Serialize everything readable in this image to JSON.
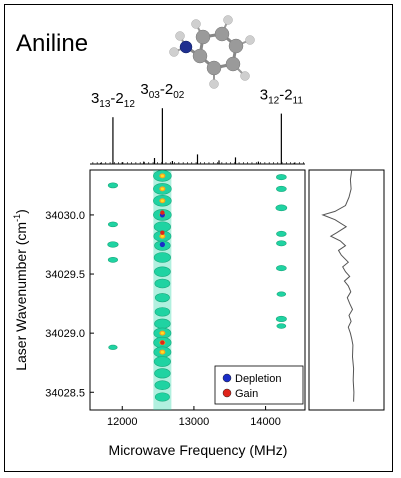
{
  "molecule": {
    "name": "Aniline",
    "atom_colors": {
      "carbon": "#9a9a9a",
      "hydrogen": "#cfcfcf",
      "nitrogen": "#1f2f8f"
    }
  },
  "chart_data": {
    "type": "heatmap",
    "title": "",
    "xlabel": "Microwave Frequency (MHz)",
    "ylabel": "Laser Wavenumber (cm⁻¹)",
    "ylabel_base": "Laser Wavenumber (cm",
    "ylabel_sup": "-1",
    "ylabel_close": ")",
    "xlim": [
      11550,
      14550
    ],
    "ylim": [
      34028.35,
      34030.38
    ],
    "x_ticks": [
      12000,
      13000,
      14000
    ],
    "x_tick_labels": [
      "12000",
      "13000",
      "14000"
    ],
    "y_ticks": [
      34028.5,
      34029.0,
      34029.5,
      34030.0
    ],
    "y_tick_labels": [
      "34028.5",
      "34029.0",
      "34029.5",
      "34030.0"
    ],
    "transitions": [
      {
        "label_main": "3",
        "sub1": "13",
        "label_mid": "-2",
        "sub2": "12",
        "frequency": 11870,
        "relative_intensity": 0.78
      },
      {
        "label_main": "3",
        "sub1": "03",
        "label_mid": "-2",
        "sub2": "02",
        "frequency": 12560,
        "relative_intensity": 0.93
      },
      {
        "label_main": "3",
        "sub1": "12",
        "label_mid": "-2",
        "sub2": "11",
        "frequency": 14220,
        "relative_intensity": 0.84
      }
    ],
    "legend": {
      "placement": "bottom-right",
      "entries": [
        {
          "label": "Depletion",
          "color": "#1a2cc8"
        },
        {
          "label": "Gain",
          "color": "#e0241a"
        }
      ]
    },
    "colors": {
      "signal": "#1fd3a2",
      "signal_edge": "#1aa87c",
      "peak_hot": "#ffe020",
      "peak_warm": "#f4a623",
      "depletion": "#1a2cc8",
      "gain": "#e0241a"
    },
    "series": [
      {
        "column_frequency": 11870,
        "spots": [
          {
            "wavenumber": 34030.25,
            "strength": 0.5
          },
          {
            "wavenumber": 34029.92,
            "strength": 0.45
          },
          {
            "wavenumber": 34029.75,
            "strength": 0.7
          },
          {
            "wavenumber": 34029.62,
            "strength": 0.5
          },
          {
            "wavenumber": 34028.88,
            "strength": 0.3
          }
        ]
      },
      {
        "column_frequency": 12560,
        "spots": [
          {
            "wavenumber": 34030.33,
            "strength": 1.0
          },
          {
            "wavenumber": 34030.22,
            "strength": 1.0
          },
          {
            "wavenumber": 34030.12,
            "strength": 1.0
          },
          {
            "wavenumber": 34030.0,
            "strength": 1.0
          },
          {
            "wavenumber": 34029.9,
            "strength": 0.8
          },
          {
            "wavenumber": 34029.82,
            "strength": 0.9
          },
          {
            "wavenumber": 34029.74,
            "strength": 0.7
          },
          {
            "wavenumber": 34029.64,
            "strength": 0.8
          },
          {
            "wavenumber": 34029.52,
            "strength": 0.75
          },
          {
            "wavenumber": 34029.42,
            "strength": 0.6
          },
          {
            "wavenumber": 34029.3,
            "strength": 0.5
          },
          {
            "wavenumber": 34029.18,
            "strength": 0.55
          },
          {
            "wavenumber": 34029.08,
            "strength": 0.7
          },
          {
            "wavenumber": 34029.0,
            "strength": 0.9
          },
          {
            "wavenumber": 34028.92,
            "strength": 0.95
          },
          {
            "wavenumber": 34028.84,
            "strength": 0.9
          },
          {
            "wavenumber": 34028.76,
            "strength": 0.8
          },
          {
            "wavenumber": 34028.66,
            "strength": 0.7
          },
          {
            "wavenumber": 34028.56,
            "strength": 0.6
          },
          {
            "wavenumber": 34028.46,
            "strength": 0.5
          }
        ],
        "depletion_points": [
          34030.0,
          34029.75
        ],
        "gain_points": [
          34030.02,
          34029.85,
          34028.92
        ]
      },
      {
        "column_frequency": 14220,
        "spots": [
          {
            "wavenumber": 34030.32,
            "strength": 0.6
          },
          {
            "wavenumber": 34030.22,
            "strength": 0.6
          },
          {
            "wavenumber": 34030.06,
            "strength": 0.8
          },
          {
            "wavenumber": 34029.84,
            "strength": 0.55
          },
          {
            "wavenumber": 34029.76,
            "strength": 0.55
          },
          {
            "wavenumber": 34029.55,
            "strength": 0.6
          },
          {
            "wavenumber": 34029.33,
            "strength": 0.35
          },
          {
            "wavenumber": 34029.12,
            "strength": 0.65
          },
          {
            "wavenumber": 34029.06,
            "strength": 0.4
          }
        ]
      }
    ],
    "side_spectrum": {
      "wavenumber": [
        34030.38,
        34030.3,
        34030.22,
        34030.15,
        34030.08,
        34030.03,
        34030.0,
        34029.96,
        34029.9,
        34029.85,
        34029.82,
        34029.78,
        34029.74,
        34029.7,
        34029.66,
        34029.6,
        34029.56,
        34029.52,
        34029.48,
        34029.44,
        34029.4,
        34029.35,
        34029.3,
        34029.25,
        34029.2,
        34029.15,
        34029.1,
        34029.05,
        34029.0,
        34028.95,
        34028.9,
        34028.8,
        34028.7,
        34028.6,
        34028.5,
        34028.42
      ],
      "intensity": [
        0.12,
        0.16,
        0.14,
        0.2,
        0.3,
        0.6,
        0.95,
        0.6,
        0.28,
        0.55,
        0.72,
        0.45,
        0.3,
        0.5,
        0.42,
        0.22,
        0.38,
        0.3,
        0.18,
        0.33,
        0.22,
        0.15,
        0.25,
        0.18,
        0.1,
        0.2,
        0.14,
        0.22,
        0.16,
        0.12,
        0.09,
        0.1,
        0.07,
        0.08,
        0.06,
        0.07
      ]
    },
    "top_spectrum": {
      "frequency": [
        11700,
        11870,
        12000,
        12300,
        12450,
        12560,
        12700,
        13050,
        13350,
        13580,
        13900,
        14220,
        14400
      ],
      "intensity": [
        0.02,
        0.78,
        0.03,
        0.04,
        0.1,
        0.93,
        0.05,
        0.16,
        0.06,
        0.11,
        0.04,
        0.84,
        0.02
      ]
    }
  }
}
